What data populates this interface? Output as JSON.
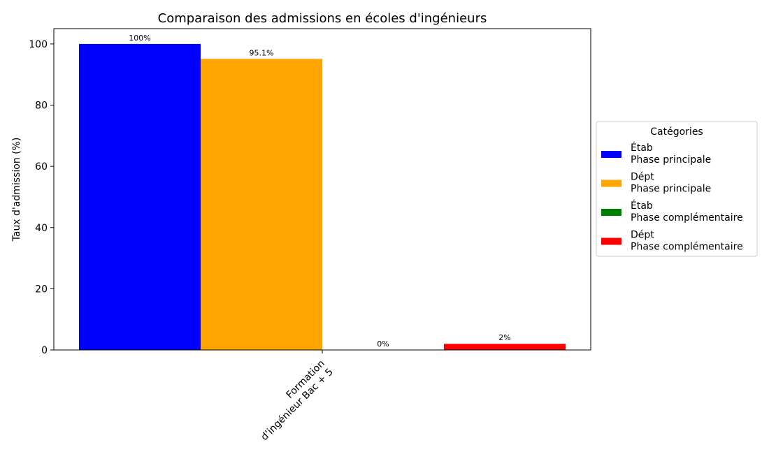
{
  "chart_data": {
    "type": "bar",
    "title": "Comparaison des admissions en écoles d'ingénieurs",
    "ylabel": "Taux d'admission (%)",
    "xlabel": "",
    "ylim": [
      0,
      105
    ],
    "yticks": [
      0,
      20,
      40,
      60,
      80,
      100
    ],
    "categories": [
      "Formation\nd'ingénieur Bac + 5"
    ],
    "series": [
      {
        "name": "Étab\nPhase principale",
        "values": [
          100
        ],
        "label": "100%",
        "color": "#0000ff"
      },
      {
        "name": "Dépt\nPhase principale",
        "values": [
          95.1
        ],
        "label": "95.1%",
        "color": "#ffa500"
      },
      {
        "name": "Étab\nPhase complémentaire",
        "values": [
          0
        ],
        "label": "0%",
        "color": "#008000"
      },
      {
        "name": "Dépt\nPhase complémentaire",
        "values": [
          2
        ],
        "label": "2%",
        "color": "#ff0000"
      }
    ],
    "legend": {
      "title": "Catégories",
      "placement": "right"
    },
    "grid": false
  }
}
